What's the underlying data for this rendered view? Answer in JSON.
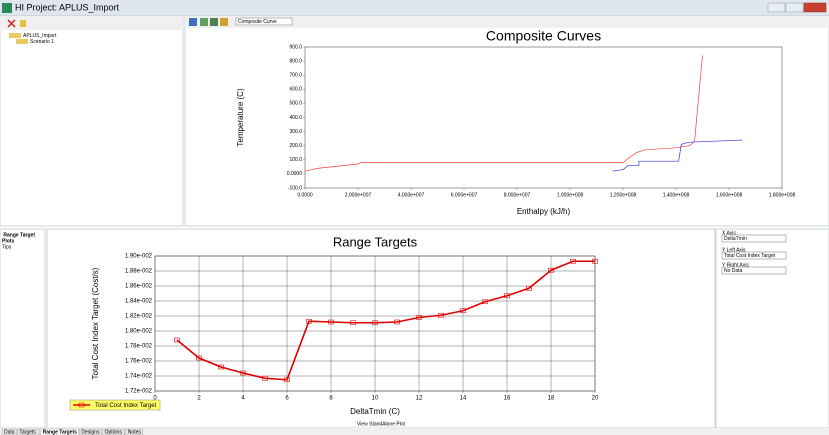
{
  "window_title": "HI Project:  APLUS_Import",
  "tree": {
    "root": "APLUS_Import",
    "child": "Scenario 1"
  },
  "toolbar": {
    "selector": "Composite Curve"
  },
  "side_panel": {
    "title": "Range Target",
    "items": [
      "Plots",
      "Tips"
    ]
  },
  "controls": {
    "x_axis_label": "X Axis",
    "x_axis_value": "DeltaTmin",
    "y_left_label": "Y Left Axis",
    "y_left_value": "Total Cost Index Target",
    "y_right_label": "Y Right Axis",
    "y_right_value": "No Data"
  },
  "footer": "View StandAlone Plot",
  "tabs": [
    "Data",
    "Targets",
    "Range Targets",
    "Designs",
    "Options",
    "Notes"
  ],
  "chart_data": [
    {
      "type": "line",
      "title": "Composite Curves",
      "x_label": "Enthalpy (kJ/h)",
      "y_label": "Temperature (C)",
      "xlim": [
        0,
        180000000
      ],
      "xticks": [
        {
          "value": 0,
          "label": "0.0000"
        },
        {
          "value": 20000000,
          "label": "2.000e+007"
        },
        {
          "value": 40000000,
          "label": "4.000e+007"
        },
        {
          "value": 60000000,
          "label": "6.000e+007"
        },
        {
          "value": 80000000,
          "label": "8.000e+007"
        },
        {
          "value": 100000000,
          "label": "1.000e+008"
        },
        {
          "value": 120000000,
          "label": "1.200e+008"
        },
        {
          "value": 140000000,
          "label": "1.400e+008"
        },
        {
          "value": 160000000,
          "label": "1.600e+008"
        },
        {
          "value": 180000000,
          "label": "1.800e+008"
        }
      ],
      "ylim": [
        -100,
        900
      ],
      "yticks": [
        {
          "value": -100,
          "label": "-100.0"
        },
        {
          "value": 0,
          "label": "0.0000"
        },
        {
          "value": 100,
          "label": "100.0"
        },
        {
          "value": 200,
          "label": "200.0"
        },
        {
          "value": 300,
          "label": "300.0"
        },
        {
          "value": 400,
          "label": "400.0"
        },
        {
          "value": 500,
          "label": "500.0"
        },
        {
          "value": 600,
          "label": "600.0"
        },
        {
          "value": 700,
          "label": "700.0"
        },
        {
          "value": 800,
          "label": "800.0"
        },
        {
          "value": 900,
          "label": "900.0"
        }
      ],
      "grid": false,
      "series": [
        {
          "color": "#f04040",
          "x": [
            0,
            5000000,
            10000000,
            20000000,
            21000000,
            120000000,
            122000000,
            125000000,
            128000000,
            140000000,
            145000000,
            147000000,
            150000000
          ],
          "values": [
            20,
            40,
            50,
            70,
            80,
            80,
            110,
            150,
            170,
            185,
            200,
            230,
            840
          ]
        },
        {
          "color": "#3030e0",
          "x": [
            116000000,
            120000000,
            122000000,
            126000000,
            126000000,
            141000000,
            142000000,
            145000000,
            165000000
          ],
          "values": [
            20,
            30,
            60,
            60,
            90,
            90,
            210,
            225,
            240
          ]
        }
      ]
    },
    {
      "type": "line",
      "title": "Range Targets",
      "x_label": "DeltaTmin (C)",
      "y_label": "Total Cost Index Target (Cost/s)",
      "xlim": [
        0,
        20
      ],
      "xticks": [
        0,
        2,
        4,
        6,
        8,
        10,
        12,
        14,
        16,
        18,
        20
      ],
      "ylim": [
        0.0172,
        0.019
      ],
      "yticks": [
        {
          "value": 0.0172,
          "label": "1.72e-002"
        },
        {
          "value": 0.0174,
          "label": "1.74e-002"
        },
        {
          "value": 0.0176,
          "label": "1.76e-002"
        },
        {
          "value": 0.0178,
          "label": "1.78e-002"
        },
        {
          "value": 0.018,
          "label": "1.80e-002"
        },
        {
          "value": 0.0182,
          "label": "1.82e-002"
        },
        {
          "value": 0.0184,
          "label": "1.84e-002"
        },
        {
          "value": 0.0186,
          "label": "1.86e-002"
        },
        {
          "value": 0.0188,
          "label": "1.88e-002"
        },
        {
          "value": 0.019,
          "label": "1.90e-002"
        }
      ],
      "grid": true,
      "markers": true,
      "series": [
        {
          "name": "Total Cost Index Target",
          "color": "#e00000",
          "x": [
            1,
            2,
            3,
            4,
            5,
            6,
            7,
            8,
            9,
            10,
            11,
            12,
            13,
            14,
            15,
            16,
            17,
            18,
            19,
            20
          ],
          "values": [
            0.01788,
            0.01764,
            0.01752,
            0.01744,
            0.01737,
            0.01735,
            0.01813,
            0.01812,
            0.01811,
            0.01811,
            0.01812,
            0.01818,
            0.01821,
            0.01827,
            0.01839,
            0.01847,
            0.01857,
            0.01881,
            0.01893,
            0.01893
          ]
        }
      ]
    }
  ]
}
